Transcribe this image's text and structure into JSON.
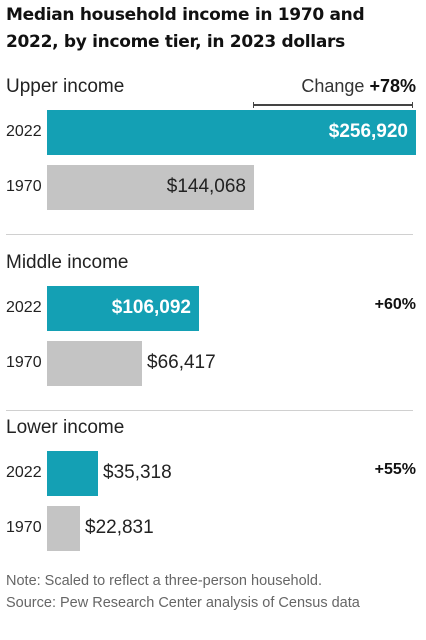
{
  "title": "Median household income in 1970 and 2022, by income tier, in 2023 dollars",
  "change_header": {
    "prefix": "Change",
    "value": "+78%"
  },
  "colors": {
    "current": "#14a0b4",
    "past": "#c4c4c4"
  },
  "note": "Note: Scaled to reflect a three-person household.",
  "source": "Source: Pew Research Center analysis of Census data",
  "chart_data": {
    "type": "bar",
    "orientation": "horizontal",
    "title": "Median household income in 1970 and 2022, by income tier, in 2023 dollars",
    "series_names": [
      "2022",
      "1970"
    ],
    "groups": [
      {
        "label": "Upper income",
        "change": "+78%",
        "bars": [
          {
            "year": "2022",
            "value": 256920,
            "label": "$256,920"
          },
          {
            "year": "1970",
            "value": 144068,
            "label": "$144,068"
          }
        ]
      },
      {
        "label": "Middle income",
        "change": "+60%",
        "bars": [
          {
            "year": "2022",
            "value": 106092,
            "label": "$106,092"
          },
          {
            "year": "1970",
            "value": 66417,
            "label": "$66,417"
          }
        ]
      },
      {
        "label": "Lower income",
        "change": "+55%",
        "bars": [
          {
            "year": "2022",
            "value": 35318,
            "label": "$35,318"
          },
          {
            "year": "1970",
            "value": 22831,
            "label": "$22,831"
          }
        ]
      }
    ],
    "xlim": [
      0,
      256920
    ]
  }
}
